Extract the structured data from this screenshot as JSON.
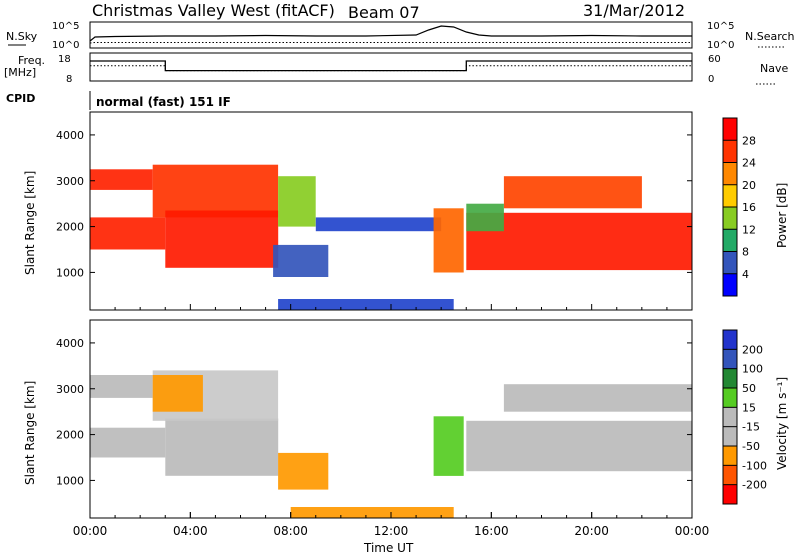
{
  "header": {
    "station": "Christmas Valley West (fitACF)",
    "beam": "Beam 07",
    "date": "31/Mar/2012"
  },
  "colors": {
    "scale_power": [
      "#0000ff",
      "#3355bb",
      "#22aa66",
      "#88cc22",
      "#ffcc00",
      "#ff8800",
      "#ff3300",
      "#ff0000"
    ],
    "scale_velocity": [
      "#ff0000",
      "#ff5500",
      "#ff9900",
      "#bbbbbb",
      "#bbbbbb",
      "#55cc22",
      "#228833",
      "#3355bb",
      "#2233cc"
    ],
    "ground_scatter": "#bbbbbb"
  },
  "chart_data": [
    {
      "type": "line",
      "name": "noise",
      "left_label": "N.Sky",
      "right_label": "N.Search",
      "yticks_left": [
        "10^5",
        "10^0"
      ],
      "yticks_right": [
        "10^5",
        "10^0"
      ],
      "x_ticks": [
        "00:00",
        "04:00",
        "08:00",
        "12:00",
        "16:00",
        "20:00",
        "00:00"
      ],
      "x": [
        0,
        0.2,
        1,
        3,
        5,
        7,
        9,
        11,
        13,
        13.5,
        14,
        14.5,
        15,
        15.5,
        16,
        18,
        20,
        22,
        24
      ],
      "series": [
        {
          "values": [
            0.5,
            0.9,
            0.95,
            1.0,
            1.0,
            1.05,
            1.0,
            1.0,
            1.1,
            1.6,
            2.0,
            1.9,
            1.4,
            1.1,
            1.0,
            1.0,
            1.05,
            1.0,
            1.0
          ]
        },
        {
          "values": [
            0.3,
            0.35,
            0.35,
            0.35,
            0.35,
            0.35,
            0.35,
            0.35,
            0.35,
            0.35,
            0.35,
            0.35,
            0.35,
            0.35,
            0.35,
            0.35,
            0.35,
            0.35,
            0.35
          ]
        }
      ]
    },
    {
      "type": "line",
      "name": "frequency",
      "left_label_line1": "Freq.",
      "left_label_line2": "[MHz]",
      "right_label": "Nave",
      "yticks_left": [
        "18",
        "8"
      ],
      "yticks_right": [
        "60",
        "0"
      ],
      "ylim": [
        8,
        18
      ],
      "x": [
        0,
        3.0,
        3.0,
        15.0,
        15.0,
        24
      ],
      "series": [
        {
          "values": [
            15.5,
            15.5,
            11.5,
            11.5,
            15.5,
            15.5
          ]
        },
        {
          "values": [
            13.5,
            13.5,
            11.5,
            11.5,
            13.5,
            13.5
          ]
        }
      ]
    },
    {
      "type": "heatmap",
      "name": "power",
      "cpid_label": "CPID",
      "cpid_text": "normal (fast) 151 IF",
      "ylabel": "Slant Range [km]",
      "yticks": [
        "4000",
        "3000",
        "2000",
        "1000"
      ],
      "ylim": [
        180,
        4500
      ],
      "xlim": [
        0,
        24
      ],
      "colorbar_label": "Power [dB]",
      "colorbar_ticks": [
        "28",
        "24",
        "20",
        "16",
        "12",
        "8",
        "4"
      ],
      "regions": [
        {
          "x": [
            0.0,
            3.0
          ],
          "y": [
            1500,
            2200
          ],
          "color": "#ff2200"
        },
        {
          "x": [
            0.0,
            2.5
          ],
          "y": [
            2800,
            3250
          ],
          "color": "#ff2200"
        },
        {
          "x": [
            2.5,
            7.5
          ],
          "y": [
            2200,
            3350
          ],
          "color": "#ff3300"
        },
        {
          "x": [
            3.0,
            7.5
          ],
          "y": [
            1100,
            2350
          ],
          "color": "#ff1a00"
        },
        {
          "x": [
            7.5,
            9.0
          ],
          "y": [
            2000,
            3100
          ],
          "color": "#88cc22"
        },
        {
          "x": [
            7.3,
            9.5
          ],
          "y": [
            900,
            1600
          ],
          "color": "#3355bb"
        },
        {
          "x": [
            9.0,
            14.0
          ],
          "y": [
            1900,
            2200
          ],
          "color": "#2244cc"
        },
        {
          "x": [
            13.7,
            14.9
          ],
          "y": [
            1000,
            2400
          ],
          "color": "#ff6600"
        },
        {
          "x": [
            15.0,
            24.0
          ],
          "y": [
            1050,
            2300
          ],
          "color": "#ff1a00"
        },
        {
          "x": [
            16.5,
            22.0
          ],
          "y": [
            2400,
            3100
          ],
          "color": "#ff4400"
        },
        {
          "x": [
            15.0,
            16.5
          ],
          "y": [
            1900,
            2500
          ],
          "color": "#44aa44"
        },
        {
          "x": [
            7.5,
            14.5
          ],
          "y": [
            180,
            420
          ],
          "color": "#2244cc"
        }
      ]
    },
    {
      "type": "heatmap",
      "name": "velocity",
      "ylabel": "Slant Range [km]",
      "xlabel": "Time UT",
      "yticks": [
        "4000",
        "3000",
        "2000",
        "1000"
      ],
      "ylim": [
        180,
        4500
      ],
      "xlim": [
        0,
        24
      ],
      "x_ticks": [
        "00:00",
        "04:00",
        "08:00",
        "12:00",
        "16:00",
        "20:00",
        "00:00"
      ],
      "colorbar_label": "Velocity [m s⁻¹]",
      "colorbar_ticks": [
        "200",
        "100",
        "50",
        "15",
        "-15",
        "-50",
        "-100",
        "-200"
      ],
      "regions": [
        {
          "x": [
            0.0,
            3.0
          ],
          "y": [
            1500,
            2150
          ],
          "color": "#bbbbbb"
        },
        {
          "x": [
            0.0,
            2.5
          ],
          "y": [
            2800,
            3300
          ],
          "color": "#bbbbbb"
        },
        {
          "x": [
            3.0,
            7.5
          ],
          "y": [
            1100,
            2350
          ],
          "color": "#bbbbbb"
        },
        {
          "x": [
            2.5,
            7.5
          ],
          "y": [
            2300,
            3400
          ],
          "color": "#c8c8c8"
        },
        {
          "x": [
            2.5,
            4.5
          ],
          "y": [
            2500,
            3300
          ],
          "color": "#ff9900"
        },
        {
          "x": [
            7.5,
            9.5
          ],
          "y": [
            800,
            1600
          ],
          "color": "#ff9900"
        },
        {
          "x": [
            13.7,
            14.9
          ],
          "y": [
            1100,
            2400
          ],
          "color": "#55cc22"
        },
        {
          "x": [
            15.0,
            24.0
          ],
          "y": [
            1200,
            2300
          ],
          "color": "#bbbbbb"
        },
        {
          "x": [
            16.5,
            24.0
          ],
          "y": [
            2500,
            3100
          ],
          "color": "#bbbbbb"
        },
        {
          "x": [
            8.0,
            14.5
          ],
          "y": [
            180,
            420
          ],
          "color": "#ff9900"
        }
      ]
    }
  ]
}
